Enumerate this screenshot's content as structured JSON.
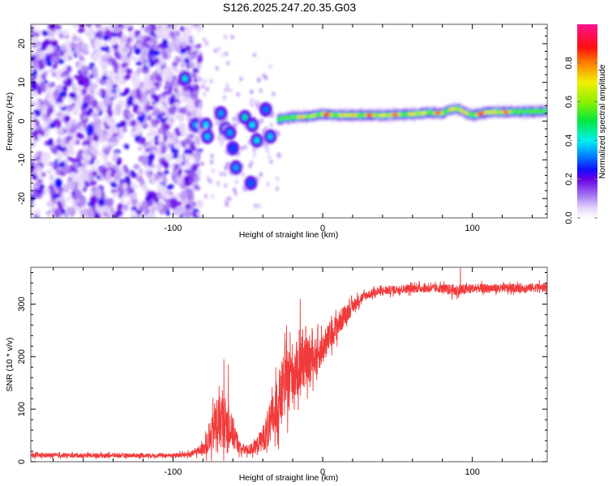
{
  "figure_title": "S126.2025.247.20.35.G03",
  "chart_data": [
    {
      "type": "heatmap",
      "title": "S126.2025.247.20.35.G03",
      "xlabel": "Height of straight line (km)",
      "ylabel": "Frequency (Hz)",
      "xlim": [
        -195,
        150
      ],
      "ylim": [
        -25,
        25
      ],
      "xticks": [
        -100,
        0,
        100
      ],
      "xtick_labels": [
        "-100",
        "0",
        "100"
      ],
      "yticks": [
        -20,
        -10,
        0,
        10,
        20
      ],
      "ytick_labels": [
        "-20",
        "-10",
        "0",
        "10",
        "20"
      ],
      "grid": false,
      "colorbar": {
        "label": "Normalized spectral amplitude",
        "range": [
          0.0,
          1.0
        ],
        "ticks": [
          0.0,
          0.2,
          0.4,
          0.6,
          0.8
        ],
        "tick_labels": [
          "0.0",
          "0.2",
          "0.4",
          "0.6",
          "0.8"
        ],
        "colormap_stops": [
          {
            "v": 0.0,
            "color": "#ffffff"
          },
          {
            "v": 0.05,
            "color": "#e6d6fb"
          },
          {
            "v": 0.12,
            "color": "#a070f0"
          },
          {
            "v": 0.2,
            "color": "#6a00e8"
          },
          {
            "v": 0.25,
            "color": "#1010ff"
          },
          {
            "v": 0.33,
            "color": "#0090ff"
          },
          {
            "v": 0.4,
            "color": "#00f0f0"
          },
          {
            "v": 0.5,
            "color": "#00e840"
          },
          {
            "v": 0.6,
            "color": "#90f000"
          },
          {
            "v": 0.7,
            "color": "#f0f000"
          },
          {
            "v": 0.8,
            "color": "#ff8000"
          },
          {
            "v": 0.88,
            "color": "#ff1010"
          },
          {
            "v": 1.0,
            "color": "#ff1090"
          }
        ]
      },
      "features": {
        "noise_region_km": [
          -195,
          -88
        ],
        "noise_amplitude": 0.15,
        "transition_blobs": [
          {
            "x": -92,
            "y": 11,
            "v": 0.42
          },
          {
            "x": -85,
            "y": -1,
            "v": 0.35
          },
          {
            "x": -78,
            "y": -1,
            "v": 0.4
          },
          {
            "x": -77,
            "y": -4,
            "v": 0.38
          },
          {
            "x": -68,
            "y": 2,
            "v": 0.35
          },
          {
            "x": -65,
            "y": -2,
            "v": 0.38
          },
          {
            "x": -62,
            "y": -3,
            "v": 0.35
          },
          {
            "x": -60,
            "y": -7,
            "v": 0.28
          },
          {
            "x": -52,
            "y": 1,
            "v": 0.45
          },
          {
            "x": -47,
            "y": -1,
            "v": 0.4
          },
          {
            "x": -44,
            "y": -5,
            "v": 0.42
          },
          {
            "x": -38,
            "y": 3,
            "v": 0.32
          },
          {
            "x": -35,
            "y": -4,
            "v": 0.38
          },
          {
            "x": -58,
            "y": -12,
            "v": 0.35
          },
          {
            "x": -48,
            "y": -16,
            "v": 0.3
          }
        ],
        "main_line": {
          "x": [
            -30,
            -20,
            -10,
            0,
            10,
            20,
            40,
            60,
            70,
            80,
            85,
            90,
            95,
            100,
            110,
            120,
            130,
            150
          ],
          "y": [
            0.5,
            1.0,
            1.2,
            1.8,
            1.5,
            1.5,
            1.5,
            1.8,
            2.2,
            2.0,
            3.0,
            3.2,
            2.2,
            1.5,
            2.3,
            2.4,
            2.4,
            2.6
          ],
          "amplitude": [
            0.5,
            0.75,
            0.85,
            0.92,
            0.9,
            0.85,
            0.95,
            0.8,
            0.9,
            0.85,
            0.95,
            0.85,
            0.8,
            0.9,
            0.97,
            0.95,
            0.65,
            0.55
          ]
        }
      }
    },
    {
      "type": "line",
      "xlabel": "Height of straight line (km)",
      "ylabel": "SNR (10 * v/v)",
      "xlim": [
        -195,
        150
      ],
      "ylim": [
        0,
        370
      ],
      "xticks": [
        -100,
        0,
        100
      ],
      "xtick_labels": [
        "-100",
        "0",
        "100"
      ],
      "yticks": [
        0,
        100,
        200,
        300
      ],
      "ytick_labels": [
        "0",
        "100",
        "200",
        "300"
      ],
      "grid": false,
      "series": [
        {
          "name": "SNR",
          "color": "#f03030",
          "envelope_x": [
            -195,
            -150,
            -100,
            -88,
            -80,
            -75,
            -72,
            -68,
            -65,
            -60,
            -55,
            -50,
            -45,
            -40,
            -35,
            -30,
            -25,
            -20,
            -15,
            -10,
            -5,
            0,
            5,
            10,
            15,
            20,
            25,
            30,
            40,
            50,
            60,
            80,
            90,
            100,
            120,
            150
          ],
          "envelope_mean": [
            12,
            12,
            12,
            14,
            25,
            40,
            70,
            80,
            75,
            55,
            25,
            22,
            28,
            45,
            70,
            110,
            150,
            170,
            180,
            190,
            200,
            215,
            240,
            260,
            280,
            295,
            310,
            318,
            325,
            328,
            330,
            330,
            325,
            330,
            330,
            332
          ],
          "envelope_spread": [
            6,
            6,
            6,
            8,
            15,
            40,
            70,
            75,
            70,
            45,
            15,
            14,
            18,
            35,
            60,
            80,
            90,
            85,
            70,
            60,
            50,
            45,
            40,
            35,
            28,
            20,
            15,
            12,
            12,
            12,
            12,
            12,
            18,
            12,
            12,
            12
          ],
          "peaks": [
            {
              "x": -66,
              "y": 195
            },
            {
              "x": -63,
              "y": 185
            },
            {
              "x": -15,
              "y": 310
            },
            {
              "x": 92,
              "y": 370
            }
          ]
        }
      ]
    }
  ]
}
